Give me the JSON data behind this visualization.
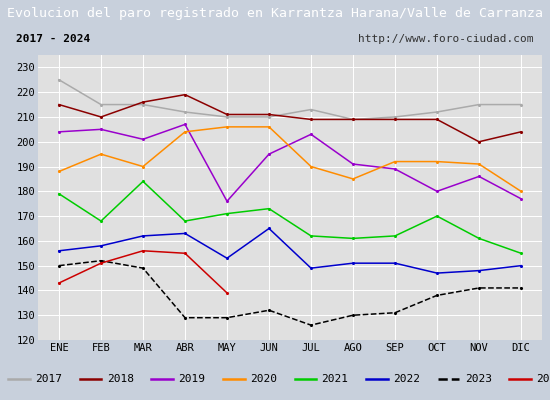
{
  "title": "Evolucion del paro registrado en Karrantza Harana/Valle de Carranza",
  "subtitle_left": "2017 - 2024",
  "subtitle_right": "http://www.foro-ciudad.com",
  "months": [
    "ENE",
    "FEB",
    "MAR",
    "ABR",
    "MAY",
    "JUN",
    "JUL",
    "AGO",
    "SEP",
    "OCT",
    "NOV",
    "DIC"
  ],
  "ylim": [
    120,
    235
  ],
  "yticks": [
    120,
    130,
    140,
    150,
    160,
    170,
    180,
    190,
    200,
    210,
    220,
    230
  ],
  "series": {
    "2017": {
      "color": "#aaaaaa",
      "linestyle": "-",
      "data": [
        225,
        215,
        215,
        212,
        210,
        210,
        213,
        209,
        210,
        212,
        215,
        215
      ]
    },
    "2018": {
      "color": "#8b0000",
      "linestyle": "-",
      "data": [
        215,
        210,
        216,
        219,
        211,
        211,
        209,
        209,
        209,
        209,
        200,
        204
      ]
    },
    "2019": {
      "color": "#9900cc",
      "linestyle": "-",
      "data": [
        204,
        205,
        201,
        207,
        176,
        195,
        203,
        191,
        189,
        180,
        186,
        177
      ]
    },
    "2020": {
      "color": "#ff8c00",
      "linestyle": "-",
      "data": [
        188,
        195,
        190,
        204,
        206,
        206,
        190,
        185,
        192,
        192,
        191,
        180
      ]
    },
    "2021": {
      "color": "#00cc00",
      "linestyle": "-",
      "data": [
        179,
        168,
        184,
        168,
        171,
        173,
        162,
        161,
        162,
        170,
        161,
        155
      ]
    },
    "2022": {
      "color": "#0000cc",
      "linestyle": "-",
      "data": [
        156,
        158,
        162,
        163,
        153,
        165,
        149,
        151,
        151,
        147,
        148,
        150
      ]
    },
    "2023": {
      "color": "#000000",
      "linestyle": "--",
      "data": [
        150,
        152,
        149,
        129,
        129,
        132,
        126,
        130,
        131,
        138,
        141,
        141
      ]
    },
    "2024": {
      "color": "#cc0000",
      "linestyle": "-",
      "data": [
        143,
        151,
        156,
        155,
        139,
        null,
        null,
        null,
        null,
        null,
        null,
        null
      ]
    }
  },
  "title_bg_color": "#4169aa",
  "title_color": "#ffffff",
  "title_fontsize": 9.5,
  "subtitle_fontsize": 8,
  "tick_fontsize": 7.5,
  "legend_fontsize": 8
}
